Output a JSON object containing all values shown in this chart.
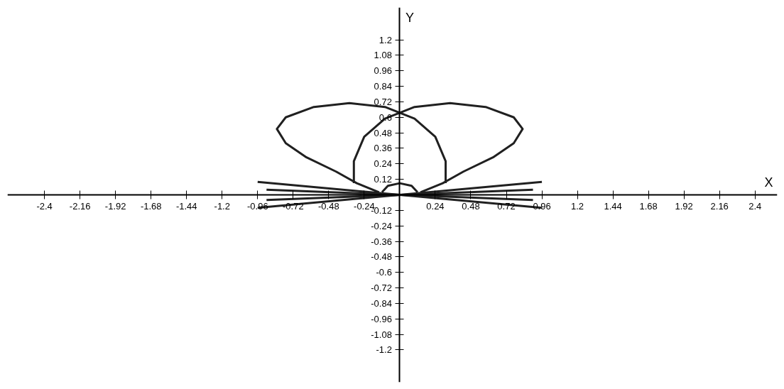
{
  "chart_data": {
    "type": "line",
    "xlabel": "X",
    "ylabel": "Y",
    "xlim": [
      -2.65,
      2.55
    ],
    "ylim": [
      -1.45,
      1.45
    ],
    "xticks": [
      -2.4,
      -2.16,
      -1.92,
      -1.68,
      -1.44,
      -1.2,
      -0.96,
      -0.72,
      -0.48,
      -0.24,
      0.24,
      0.48,
      0.72,
      0.96,
      1.2,
      1.44,
      1.68,
      1.92,
      2.16,
      2.4
    ],
    "yticks": [
      -1.2,
      -1.08,
      -0.96,
      -0.84,
      -0.72,
      -0.6,
      -0.48,
      -0.36,
      -0.24,
      -0.12,
      0.12,
      0.24,
      0.36,
      0.48,
      0.6,
      0.72,
      0.84,
      0.96,
      1.08,
      1.2
    ],
    "grid": false,
    "marker": "none",
    "line_style": "solid",
    "series": [
      {
        "color": "#202020",
        "x": [
          0.31,
          0.31,
          0.24,
          0.1,
          -0.1,
          -0.34,
          -0.58,
          -0.77,
          -0.83,
          -0.77,
          -0.63,
          -0.43,
          -0.29,
          -0.14
        ],
        "values": [
          0.09,
          0.26,
          0.45,
          0.59,
          0.68,
          0.71,
          0.68,
          0.6,
          0.51,
          0.4,
          0.29,
          0.18,
          0.09,
          0.02
        ]
      },
      {
        "color": "#202020",
        "x": [
          -0.31,
          -0.31,
          -0.24,
          -0.1,
          0.1,
          0.34,
          0.58,
          0.77,
          0.83,
          0.77,
          0.63,
          0.43,
          0.29,
          0.14
        ],
        "values": [
          0.09,
          0.26,
          0.45,
          0.59,
          0.68,
          0.71,
          0.68,
          0.6,
          0.51,
          0.4,
          0.29,
          0.18,
          0.09,
          0.02
        ]
      },
      {
        "color": "#202020",
        "x": [
          -0.96,
          0.96
        ],
        "values": [
          0.1,
          -0.1
        ]
      },
      {
        "color": "#202020",
        "x": [
          -0.96,
          0.96
        ],
        "values": [
          -0.1,
          0.1
        ]
      },
      {
        "color": "#202020",
        "x": [
          -0.9,
          0.9
        ],
        "values": [
          0.04,
          -0.04
        ]
      },
      {
        "color": "#202020",
        "x": [
          -0.9,
          0.9
        ],
        "values": [
          -0.04,
          0.04
        ]
      },
      {
        "color": "#202020",
        "x": [
          -0.12,
          -0.08,
          0,
          0.08,
          0.12
        ],
        "values": [
          0.02,
          0.07,
          0.09,
          0.07,
          0.02
        ]
      }
    ]
  }
}
